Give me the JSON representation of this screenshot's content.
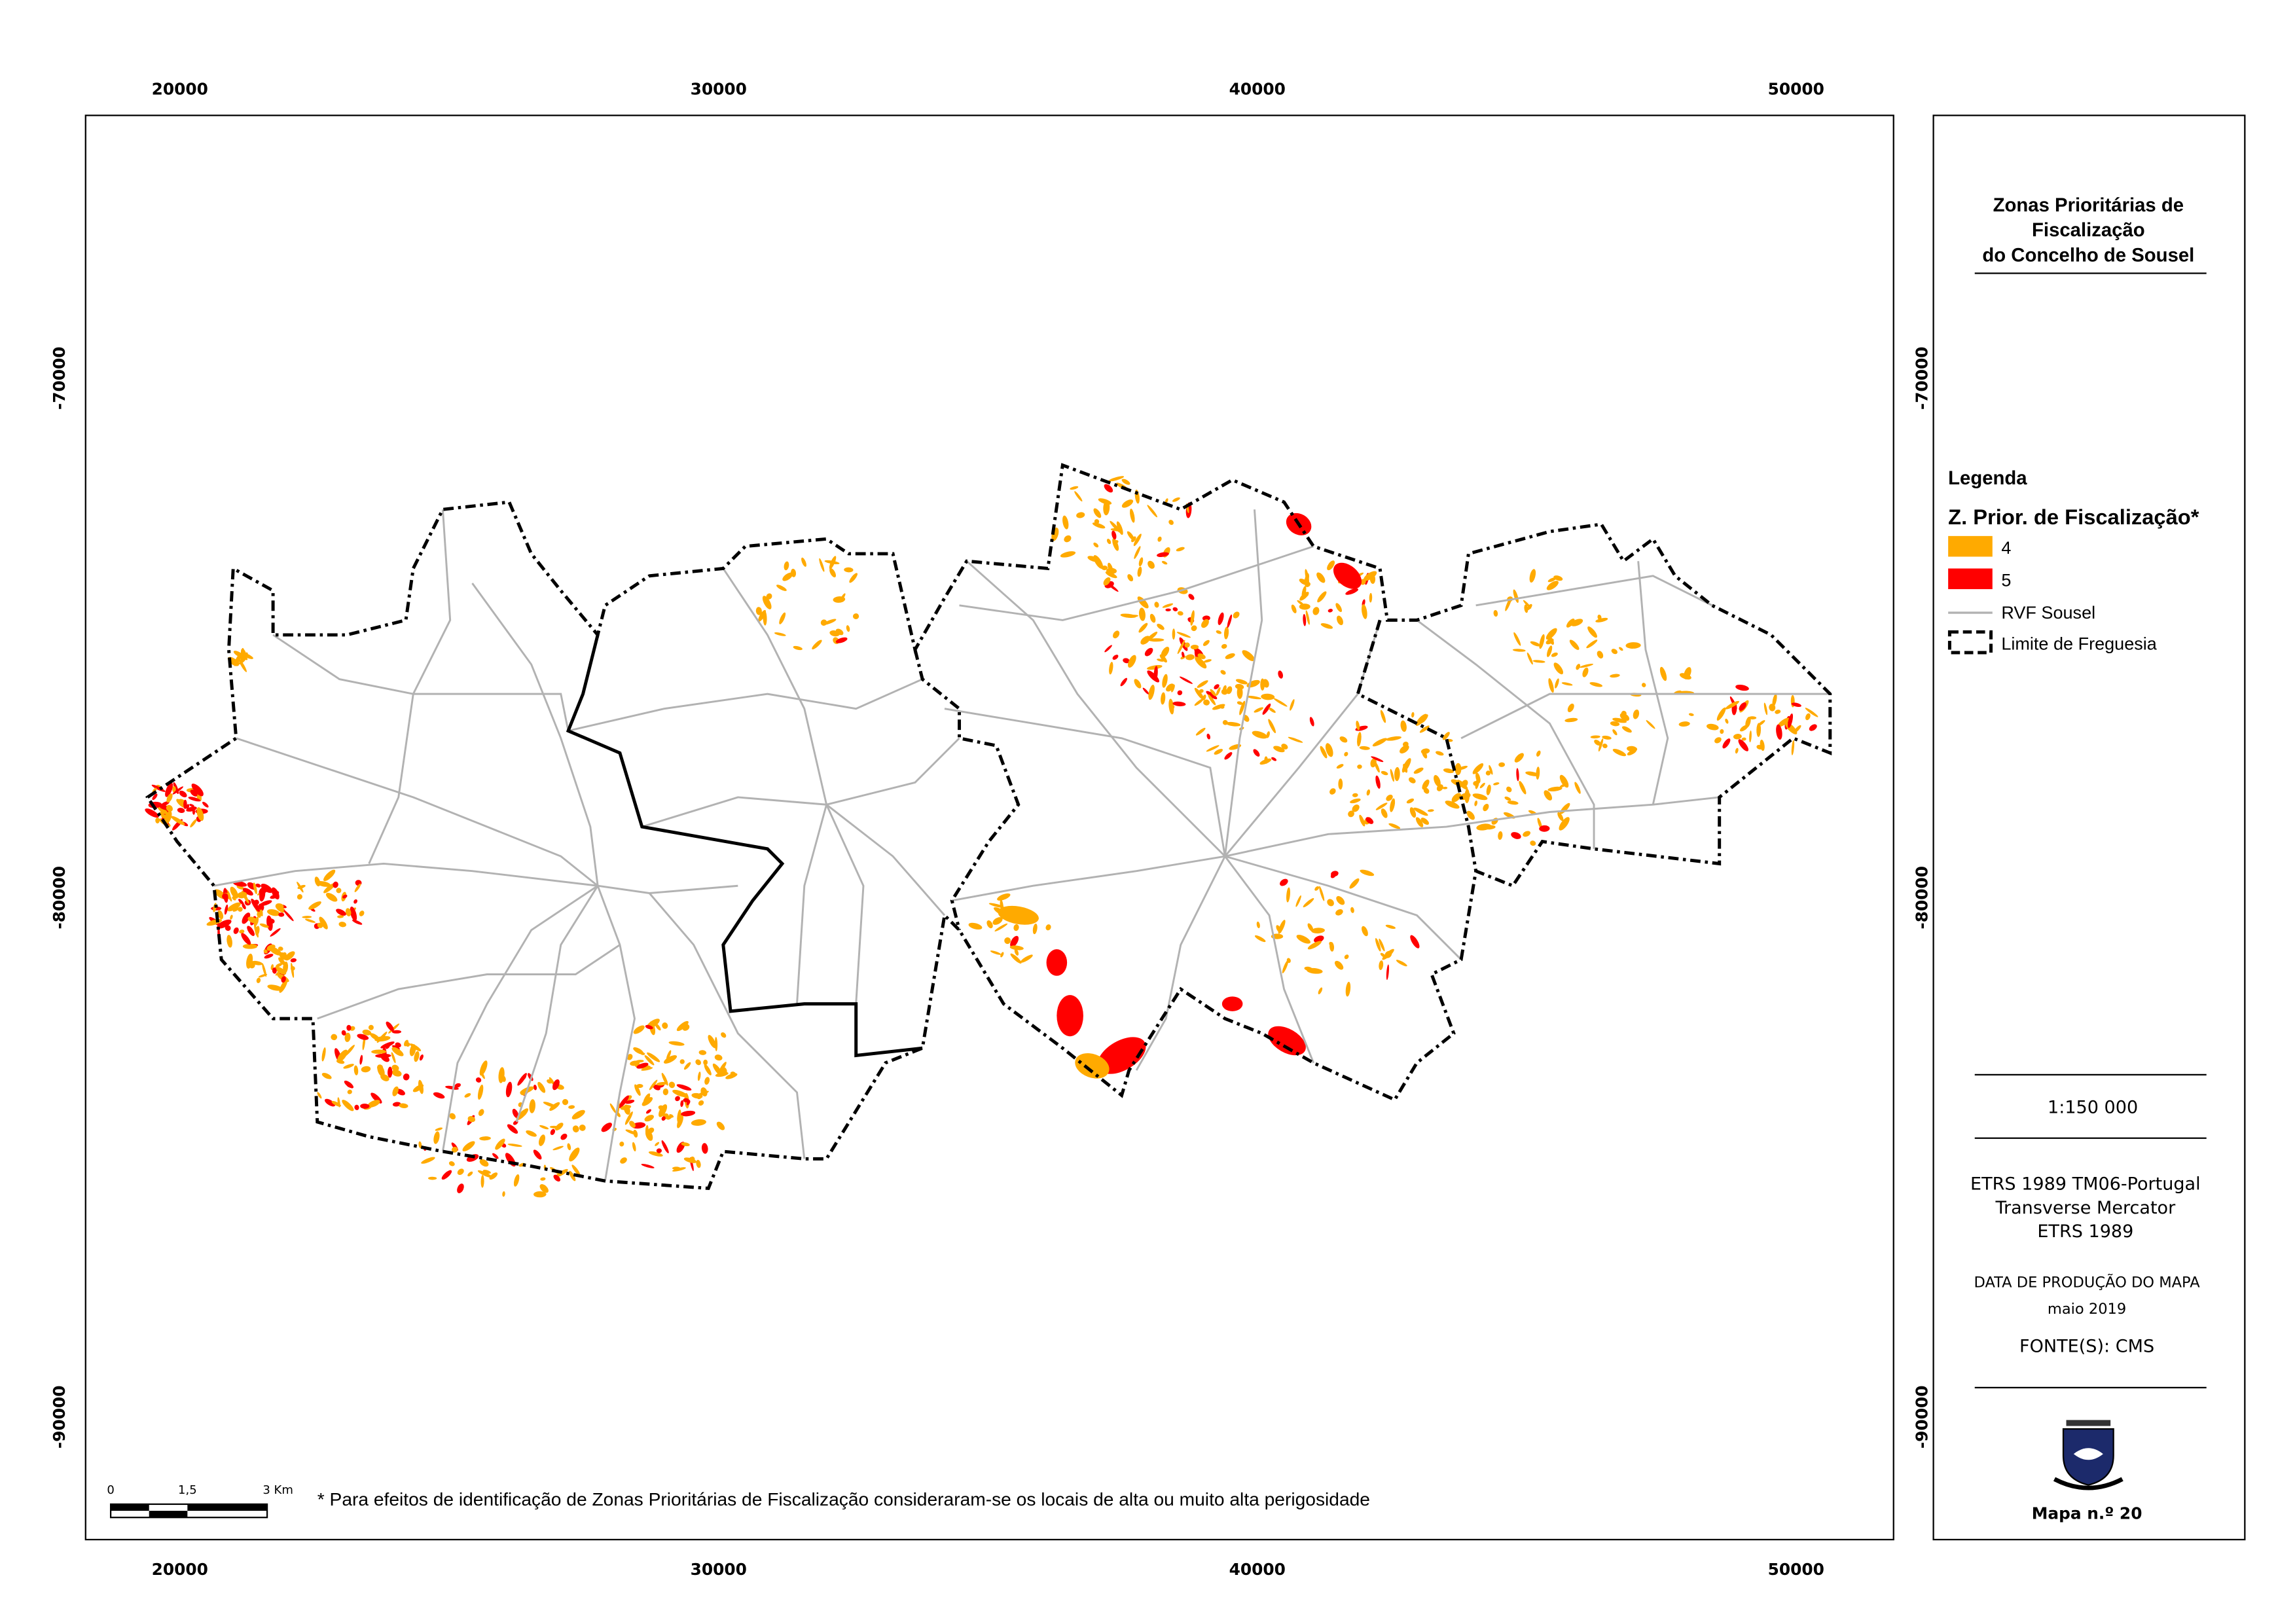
{
  "map": {
    "x_ticks": [
      20000,
      30000,
      40000,
      50000
    ],
    "y_ticks": [
      -70000,
      -80000,
      -90000
    ],
    "xlim": [
      18250,
      51810
    ],
    "ylim": [
      -92360,
      -64940
    ],
    "footnote": "* Para efeitos de identificação de Zonas Prioritárias de Fiscalização consideraram-se os locais de alta ou muito alta perigosidade",
    "scale_bar": [
      "0",
      "1,5",
      "3 Km"
    ]
  },
  "panel": {
    "title": [
      "Zonas Prioritárias de",
      "Fiscalização",
      "do Concelho de Sousel"
    ],
    "legend": {
      "heading": "Legenda",
      "subheading": "Z. Prior. de Fiscalização*",
      "items": [
        {
          "label": "4",
          "color": "#ffaa00"
        },
        {
          "label": "5",
          "color": "#ff0000"
        },
        {
          "label": "RVF Sousel",
          "color": "#b2b2b2"
        },
        {
          "label": "Limite de Freguesia",
          "color": "#000000"
        }
      ]
    },
    "scale": "1:150 000",
    "projection": [
      "ETRS 1989 TM06-Portugal",
      "Transverse Mercator",
      "ETRS 1989"
    ],
    "date_label": "DATA DE PRODUÇÃO DO MAPA",
    "date": "maio 2019",
    "source": "FONTE(S): CMS",
    "map_number": "Mapa n.º 20"
  }
}
